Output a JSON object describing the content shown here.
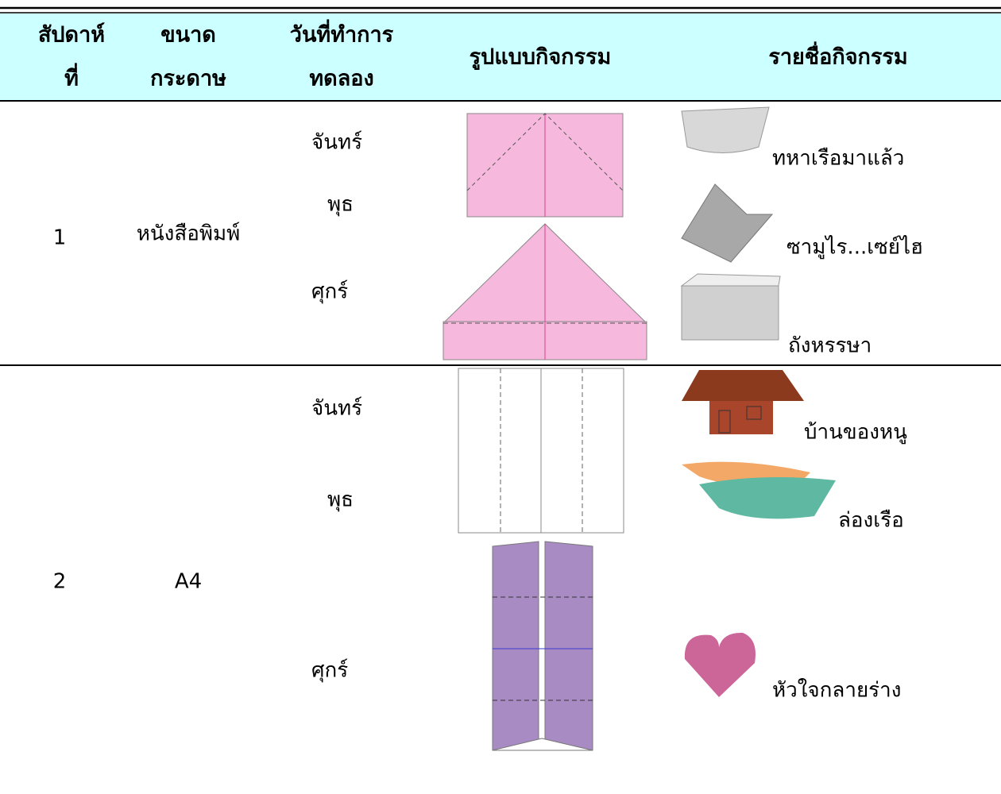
{
  "header": {
    "columns": [
      [
        "สัปดาห์",
        "ที่"
      ],
      [
        "ขนาด",
        "กระดาษ"
      ],
      [
        "วันที่ทำการ",
        "ทดลอง"
      ],
      [
        "รูปแบบกิจกรรม"
      ],
      [
        "รายชื่อกิจกรรม"
      ]
    ]
  },
  "rows": [
    {
      "week": "1",
      "paper": "หนังสือพิมพ์",
      "days": [
        "จันทร์",
        "พุธ",
        "ศุกร์"
      ],
      "activities": [
        "ทหาเรือมาแล้ว",
        "ซามูไร...เซย์ไฮ",
        "ถังหรรษา"
      ]
    },
    {
      "week": "2",
      "paper": "A4",
      "days": [
        "จันทร์",
        "พุธ",
        "ศุกร์"
      ],
      "activities": [
        "บ้านของหนู",
        "ล่องเรือ",
        "หัวใจกลายร่าง"
      ]
    }
  ]
}
